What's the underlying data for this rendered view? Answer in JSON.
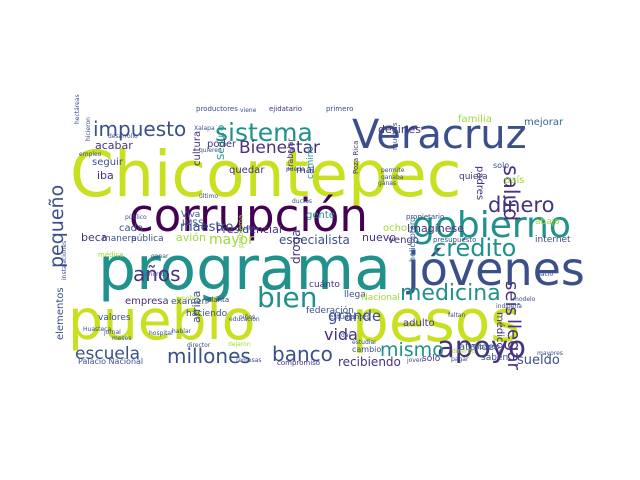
{
  "palette": {
    "yellowgreen": "#c8e020",
    "navy": "#3b4f8a",
    "teal": "#21918c",
    "green": "#5ec962",
    "indigo": "#46327e",
    "deep": "#440154",
    "blue": "#31688e",
    "olive": "#a0da39"
  },
  "words": [
    {
      "text": "Chicontepec",
      "color": "yellowgreen"
    },
    {
      "text": "programa",
      "color": "teal"
    },
    {
      "text": "corrupción",
      "color": "deep"
    },
    {
      "text": "pueblo",
      "color": "yellowgreen"
    },
    {
      "text": "pesos",
      "color": "yellowgreen"
    },
    {
      "text": "jóvenes",
      "color": "navy"
    },
    {
      "text": "Veracruz",
      "color": "navy"
    },
    {
      "text": "gobierno",
      "color": "teal"
    },
    {
      "text": "apoyo",
      "color": "indigo"
    },
    {
      "text": "sistema",
      "color": "teal"
    },
    {
      "text": "impuesto",
      "color": "navy"
    },
    {
      "text": "crédito",
      "color": "teal"
    },
    {
      "text": "medicina",
      "color": "teal"
    },
    {
      "text": "bien",
      "color": "teal"
    },
    {
      "text": "dinero",
      "color": "indigo"
    },
    {
      "text": "millones",
      "color": "navy"
    },
    {
      "text": "banco",
      "color": "navy"
    },
    {
      "text": "Bienestar",
      "color": "indigo"
    },
    {
      "text": "salud",
      "color": "indigo"
    },
    {
      "text": "pequeño",
      "color": "navy"
    },
    {
      "text": "escuela",
      "color": "navy"
    },
    {
      "text": "mismo",
      "color": "teal"
    },
    {
      "text": "años",
      "color": "indigo"
    },
    {
      "text": "seis",
      "color": "indigo"
    },
    {
      "text": "llegar",
      "color": "indigo"
    },
    {
      "text": "vida",
      "color": "indigo"
    },
    {
      "text": "grande",
      "color": "navy"
    },
    {
      "text": "maestro",
      "color": "navy"
    },
    {
      "text": "mayor",
      "color": "olive"
    },
    {
      "text": "especialista",
      "color": "navy"
    },
    {
      "text": "Presidencial",
      "color": "indigo"
    },
    {
      "text": "sueldo",
      "color": "navy"
    },
    {
      "text": "recibiendo",
      "color": "indigo"
    },
    {
      "text": "Imagínese",
      "color": "indigo"
    },
    {
      "text": "decirles",
      "color": "indigo"
    },
    {
      "text": "acabar",
      "color": "indigo"
    },
    {
      "text": "cultura",
      "color": "indigo"
    },
    {
      "text": "droga",
      "color": "indigo"
    },
    {
      "text": "adulto",
      "color": "indigo"
    },
    {
      "text": "avión",
      "color": "olive"
    },
    {
      "text": "familia",
      "color": "olive"
    },
    {
      "text": "mejorar",
      "color": "blue"
    },
    {
      "text": "médicos",
      "color": "indigo"
    },
    {
      "text": "elementos",
      "color": "navy"
    },
    {
      "text": "empresa",
      "color": "indigo"
    },
    {
      "text": "padres",
      "color": "indigo"
    },
    {
      "text": "beca",
      "color": "indigo"
    },
    {
      "text": "cada",
      "color": "navy"
    },
    {
      "text": "nuevo",
      "color": "indigo"
    },
    {
      "text": "gente",
      "color": "teal"
    },
    {
      "text": "camino",
      "color": "teal"
    },
    {
      "text": "abajo",
      "color": "olive"
    },
    {
      "text": "país",
      "color": "olive"
    },
    {
      "text": "seguir",
      "color": "navy"
    },
    {
      "text": "iba",
      "color": "indigo"
    },
    {
      "text": "mal",
      "color": "indigo"
    },
    {
      "text": "ocho",
      "color": "olive"
    },
    {
      "text": "Seguro",
      "color": "teal"
    },
    {
      "text": "quedar",
      "color": "indigo"
    },
    {
      "text": "poder",
      "color": "indigo"
    },
    {
      "text": "vengo",
      "color": "indigo"
    },
    {
      "text": "atender",
      "color": "navy"
    },
    {
      "text": "federación",
      "color": "navy"
    },
    {
      "text": "haciendo",
      "color": "navy"
    },
    {
      "text": "cuánto",
      "color": "indigo"
    },
    {
      "text": "valores",
      "color": "navy"
    },
    {
      "text": "arriba",
      "color": "navy"
    },
    {
      "text": "llega",
      "color": "navy"
    },
    {
      "text": "Nacional",
      "color": "olive"
    },
    {
      "text": "quiera",
      "color": "indigo"
    },
    {
      "text": "sólo",
      "color": "indigo"
    },
    {
      "text": "saben",
      "color": "navy"
    },
    {
      "text": "cambio",
      "color": "navy"
    },
    {
      "text": "internet",
      "color": "navy"
    },
    {
      "text": "manera",
      "color": "navy"
    },
    {
      "text": "pública",
      "color": "navy"
    },
    {
      "text": "IMSS",
      "color": "navy"
    },
    {
      "text": "Viva",
      "color": "navy"
    },
    {
      "text": "examen",
      "color": "navy"
    },
    {
      "text": "solo",
      "color": "navy"
    },
    {
      "text": "productores",
      "color": "navy"
    },
    {
      "text": "ejidatario",
      "color": "indigo"
    },
    {
      "text": "primero",
      "color": "navy"
    },
    {
      "text": "helicóptero",
      "color": "blue"
    },
    {
      "text": "Palacio Nacional",
      "color": "navy"
    },
    {
      "text": "compromiso",
      "color": "indigo"
    },
    {
      "text": "Tabasco",
      "color": "navy"
    },
    {
      "text": "propietario",
      "color": "navy"
    },
    {
      "text": "presupuesto",
      "color": "navy"
    },
    {
      "text": "planta",
      "color": "indigo"
    },
    {
      "text": "estudiantes",
      "color": "navy"
    },
    {
      "text": "muchas",
      "color": "navy"
    },
    {
      "text": "permite",
      "color": "navy"
    },
    {
      "text": "ganaba",
      "color": "navy"
    },
    {
      "text": "ganas",
      "color": "navy"
    },
    {
      "text": "trabajar",
      "color": "indigo"
    },
    {
      "text": "Poza Rica",
      "color": "indigo"
    },
    {
      "text": "pueda",
      "color": "navy"
    },
    {
      "text": "público",
      "color": "navy"
    },
    {
      "text": "cuatro",
      "color": "navy"
    },
    {
      "text": "problema",
      "color": "olive"
    },
    {
      "text": "médica",
      "color": "olive"
    },
    {
      "text": "desarrollo",
      "color": "navy"
    },
    {
      "text": "Xalapa",
      "color": "navy"
    },
    {
      "text": "viene",
      "color": "navy"
    },
    {
      "text": "quieren",
      "color": "navy"
    },
    {
      "text": "hablar",
      "color": "navy"
    },
    {
      "text": "director",
      "color": "navy"
    },
    {
      "text": "Huasteca",
      "color": "navy"
    },
    {
      "text": "hospital",
      "color": "navy"
    },
    {
      "text": "jornal",
      "color": "navy"
    },
    {
      "text": "meses",
      "color": "navy"
    },
    {
      "text": "faltan",
      "color": "navy"
    },
    {
      "text": "nació",
      "color": "navy"
    },
    {
      "text": "mayores",
      "color": "navy"
    },
    {
      "text": "pagar",
      "color": "navy"
    },
    {
      "text": "joven",
      "color": "navy"
    },
    {
      "text": "estudiar",
      "color": "navy"
    },
    {
      "text": "modelo",
      "color": "navy"
    },
    {
      "text": "indígena",
      "color": "navy"
    },
    {
      "text": "último",
      "color": "navy"
    },
    {
      "text": "empleo",
      "color": "navy"
    },
    {
      "text": "ahorro",
      "color": "navy"
    },
    {
      "text": "ganar",
      "color": "navy"
    },
    {
      "text": "pobre",
      "color": "olive"
    },
    {
      "text": "niños",
      "color": "navy"
    },
    {
      "text": "educación",
      "color": "navy"
    },
    {
      "text": "remesas",
      "color": "navy"
    },
    {
      "text": "ductos",
      "color": "navy"
    },
    {
      "text": "dar",
      "color": "navy"
    },
    {
      "text": "hicieron",
      "color": "navy"
    },
    {
      "text": "hectáreas",
      "color": "navy"
    },
    {
      "text": "instalaciones",
      "color": "navy"
    },
    {
      "text": "dinerito",
      "color": "olive"
    },
    {
      "text": "dejaron",
      "color": "olive"
    }
  ]
}
